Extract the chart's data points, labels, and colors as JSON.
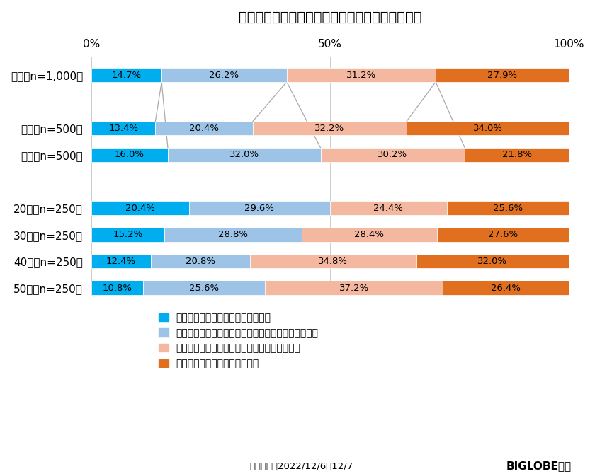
{
  "title": "マスクを着用する習慣が身に付いたことについて",
  "categories": [
    "全体（n=1,000）",
    "",
    "男性（n=500）",
    "女性（n=500）",
    "",
    "20代（n=250）",
    "30代（n=250）",
    "40代（n=250）",
    "50代（n=250）"
  ],
  "data": [
    [
      14.7,
      26.2,
      31.2,
      27.9
    ],
    [
      0,
      0,
      0,
      0
    ],
    [
      13.4,
      20.4,
      32.2,
      34.0
    ],
    [
      16.0,
      32.0,
      30.2,
      21.8
    ],
    [
      0,
      0,
      0,
      0
    ],
    [
      20.4,
      29.6,
      24.4,
      25.6
    ],
    [
      15.2,
      28.8,
      28.4,
      27.6
    ],
    [
      12.4,
      20.8,
      34.8,
      32.0
    ],
    [
      10.8,
      25.6,
      37.2,
      26.4
    ]
  ],
  "colors": [
    "#00AEEF",
    "#9DC3E6",
    "#F4B8A0",
    "#E07020"
  ],
  "legend_labels": [
    "外すことが息ずかしい、手放せない",
    "どちらかといえば外すことが息ずかしい、手放せない",
    "どちらかといえば外せるなら外すことができる",
    "外せるなら、外すことができる"
  ],
  "footer_left": "調査期間：2022/12/6～12/7",
  "footer_right": "BIGLOBE調べ",
  "background_color": "#FFFFFF",
  "bar_height": 0.52,
  "xlim": [
    0,
    100
  ],
  "xticks": [
    0,
    50,
    100
  ],
  "xtick_labels": [
    "0%",
    "50%",
    "100%"
  ],
  "connector_color": "#AAAAAA",
  "connector_lw": 0.9,
  "grid_color": "#CCCCCC",
  "grid_lw": 0.7
}
